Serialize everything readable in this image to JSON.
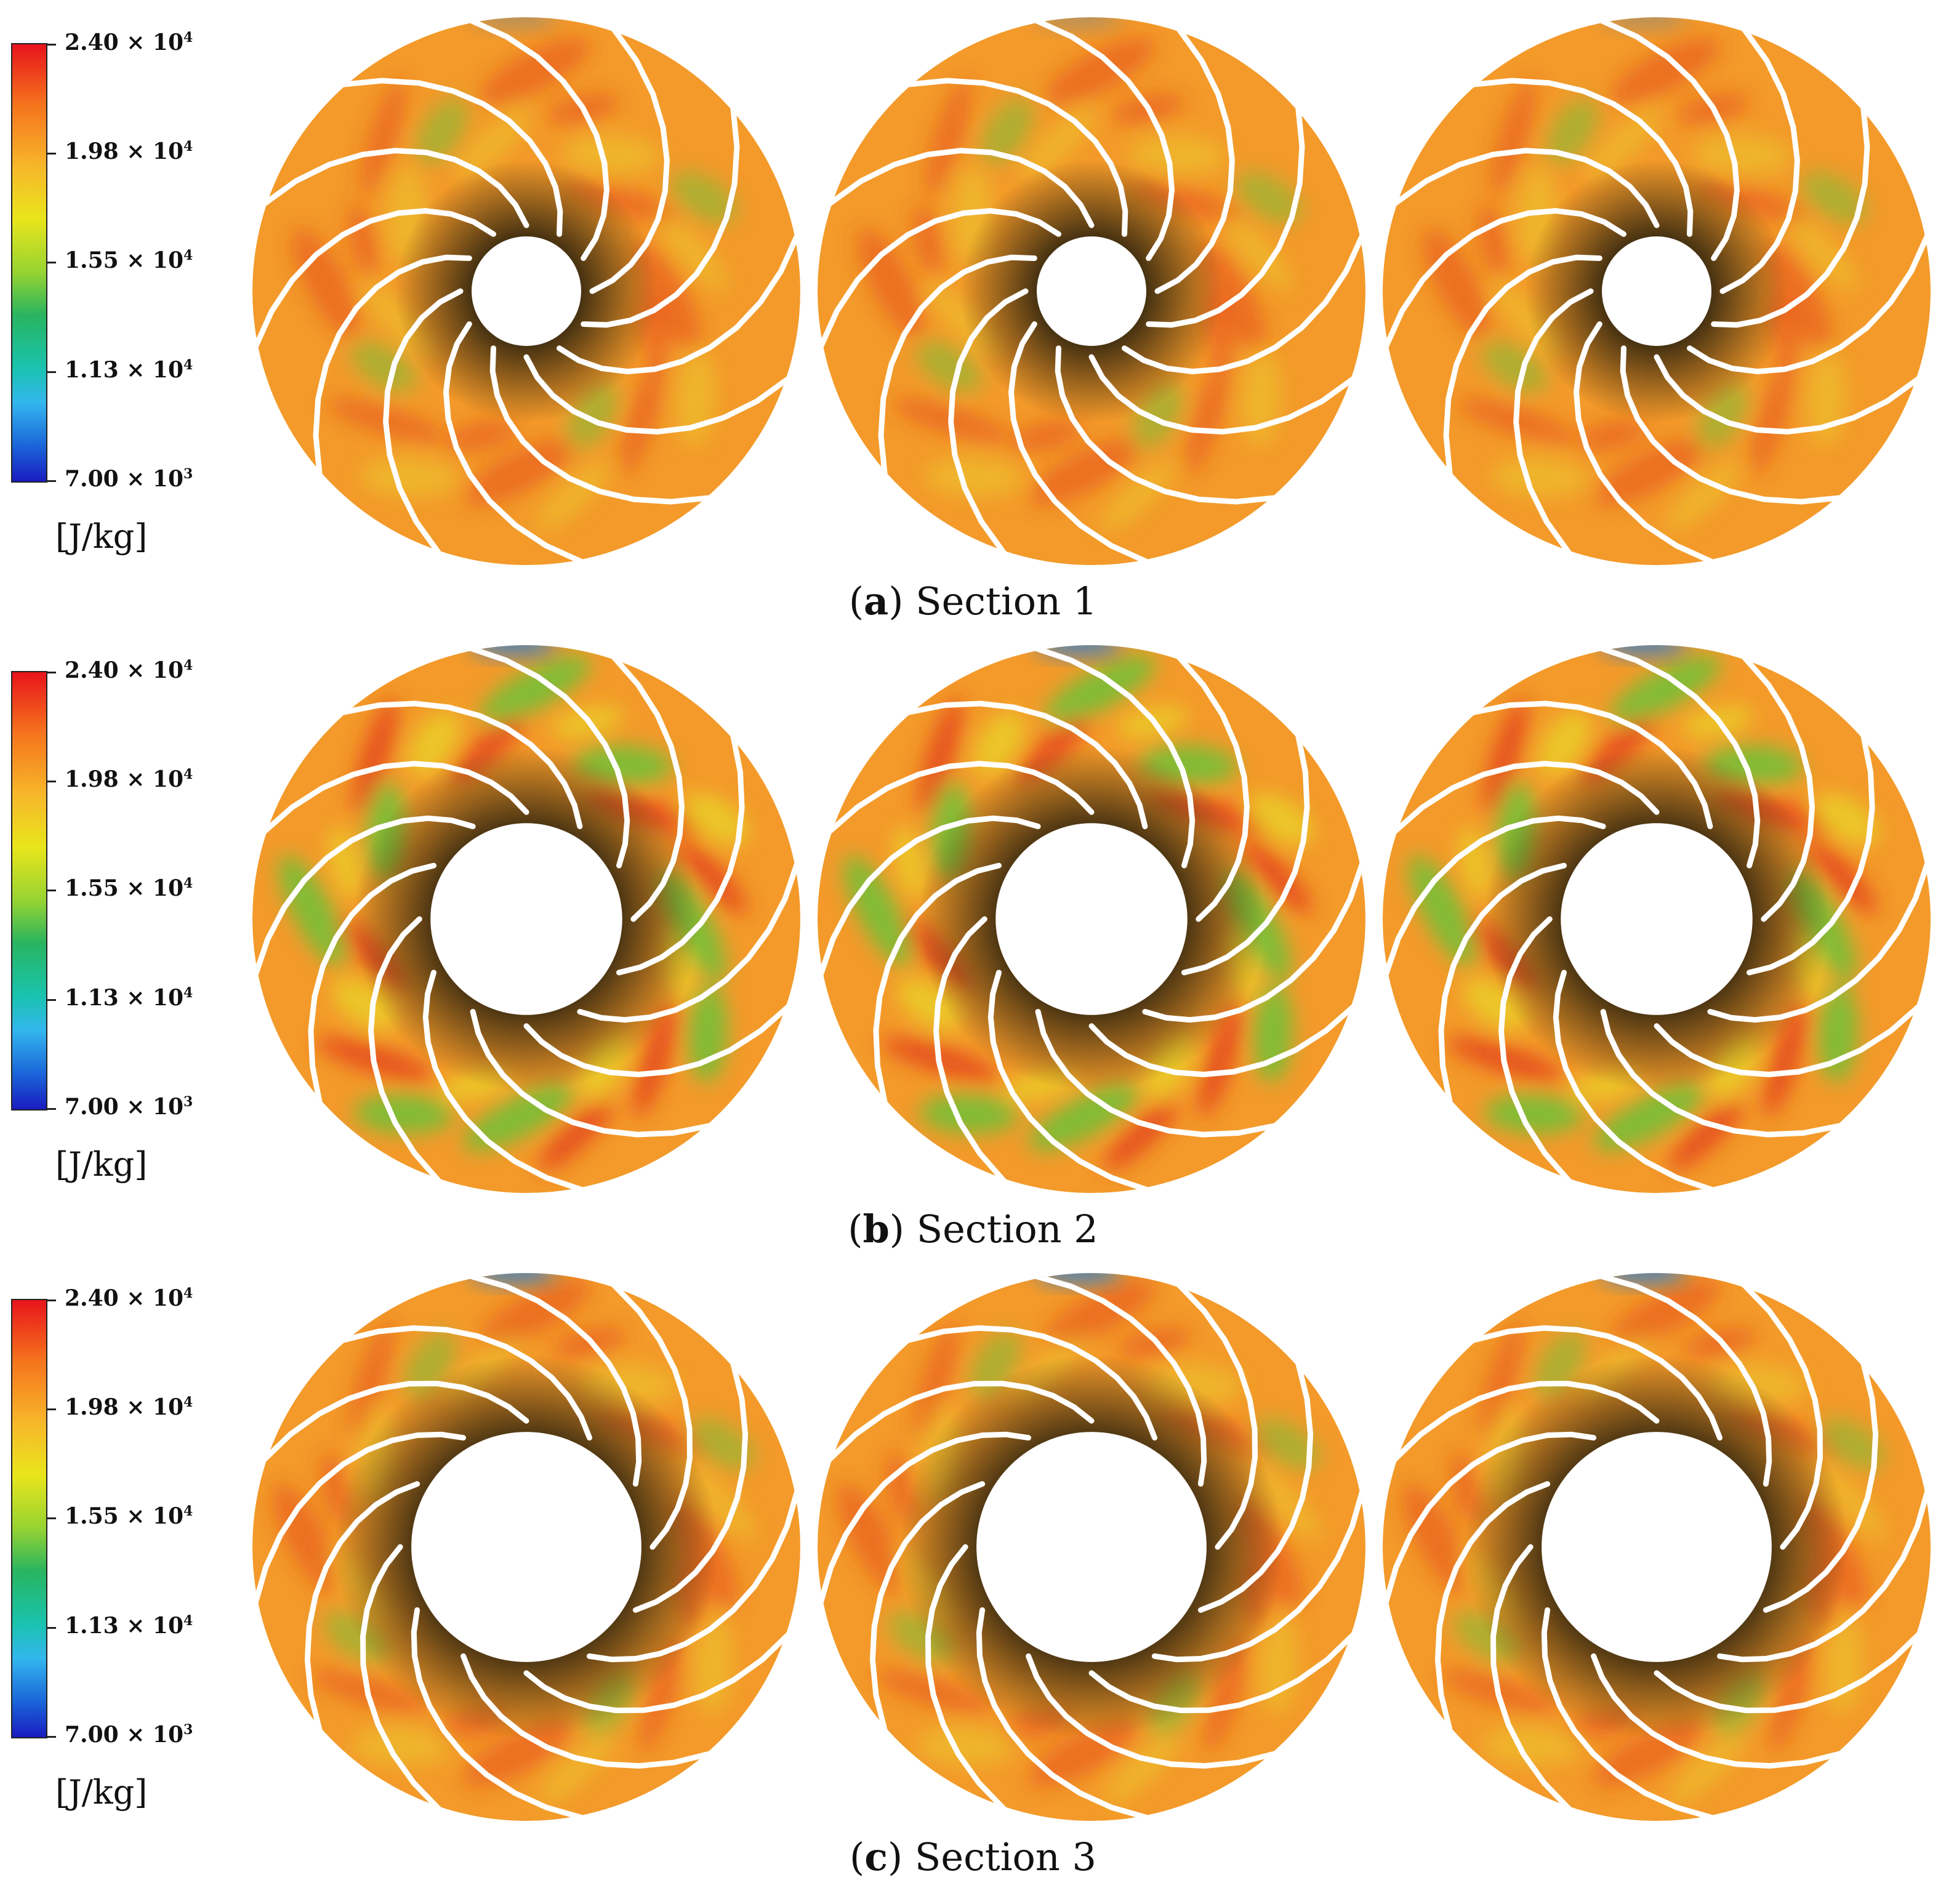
{
  "colorbar": {
    "ticks": [
      "2.40 × 10",
      "1.98 × 10",
      "1.55 × 10",
      "1.13 × 10",
      "7.00 × 10"
    ],
    "exponents": [
      "4",
      "4",
      "4",
      "4",
      "3"
    ],
    "unit": "[J/kg]",
    "max": 24000,
    "min": 7000
  },
  "sections": [
    {
      "letter": "a",
      "caption": "Section 1",
      "hub_ratio": 0.2
    },
    {
      "letter": "b",
      "caption": "Section 2",
      "hub_ratio": 0.35
    },
    {
      "letter": "c",
      "caption": "Section 3",
      "hub_ratio": 0.42
    }
  ],
  "blades_per_impeller": 12,
  "colors": {
    "red": "#e23a1c",
    "orange": "#f39a2a",
    "yellow": "#e8d52a",
    "green": "#5cc73a",
    "blue": "#1f7be0",
    "hub_shadow": "#3a2a10"
  }
}
